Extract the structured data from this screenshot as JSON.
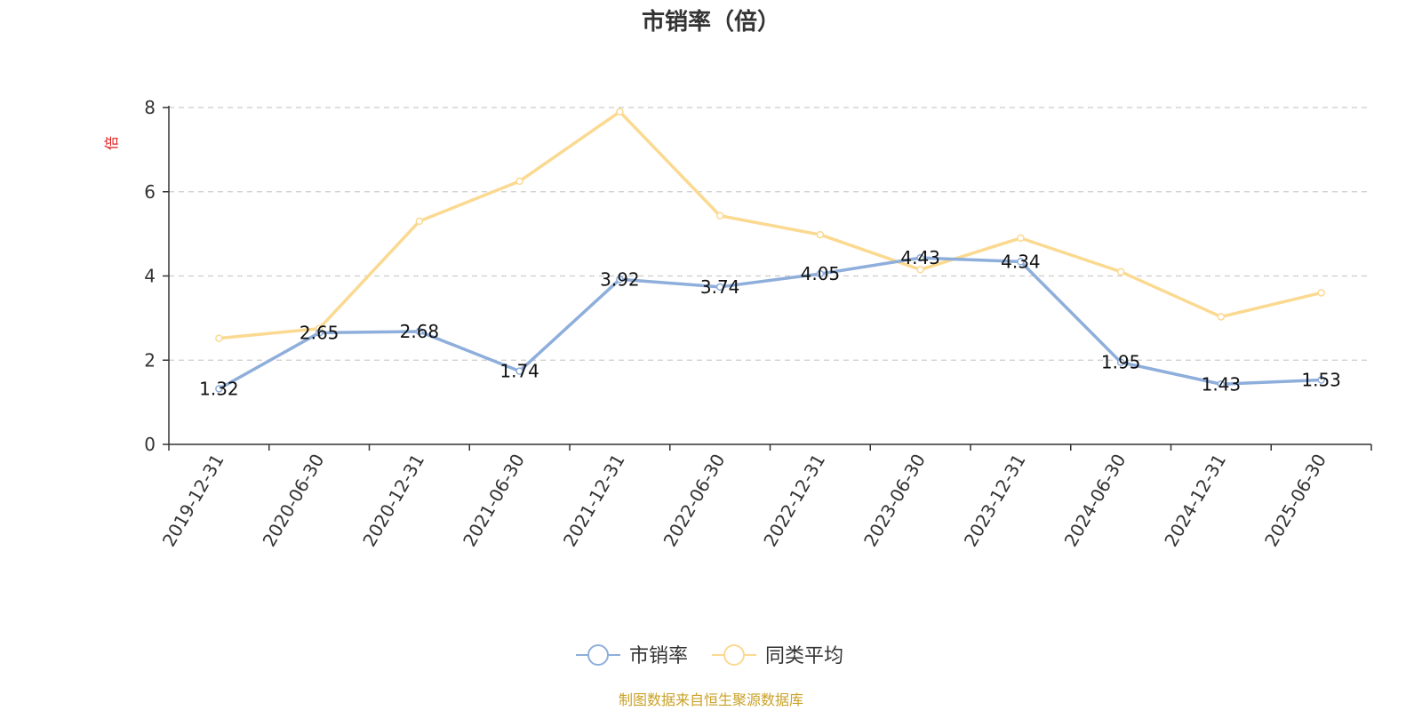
{
  "chart_data": {
    "type": "line",
    "title": "市销率（倍）",
    "ylabel": "倍",
    "ylim": [
      0,
      8
    ],
    "yticks": [
      0,
      2,
      4,
      6,
      8
    ],
    "categories": [
      "2019-12-31",
      "2020-06-30",
      "2020-12-31",
      "2021-06-30",
      "2021-12-31",
      "2022-06-30",
      "2022-12-31",
      "2023-06-30",
      "2023-12-31",
      "2024-06-30",
      "2024-12-31",
      "2025-06-30"
    ],
    "series": [
      {
        "name": "市销率",
        "color": "#8eaedb",
        "values": [
          1.32,
          2.65,
          2.68,
          1.74,
          3.92,
          3.74,
          4.05,
          4.43,
          4.34,
          1.95,
          1.43,
          1.53
        ],
        "labels_shown": true
      },
      {
        "name": "同类平均",
        "color": "#fbd990",
        "values": [
          2.52,
          2.75,
          5.3,
          6.25,
          7.9,
          5.43,
          4.98,
          4.15,
          4.9,
          4.1,
          3.03,
          3.6
        ],
        "labels_shown": false
      }
    ],
    "grid": "horizontal dashed",
    "legend": "bottom-center",
    "source": "制图数据来自恒生聚源数据库",
    "colors": {
      "axis": "#333333",
      "grid": "#cccccc",
      "unit": "#e02020",
      "source": "#c9a227"
    }
  }
}
